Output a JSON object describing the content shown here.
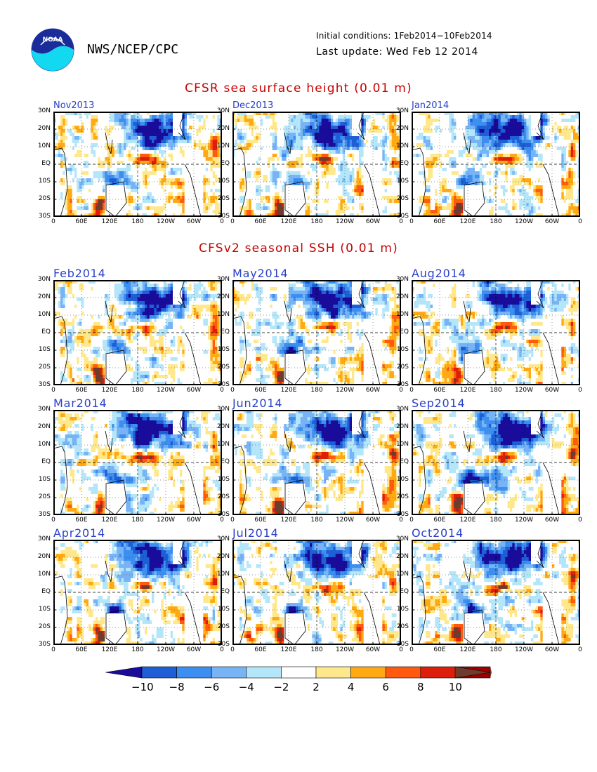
{
  "header": {
    "org": "NWS/NCEP/CPC",
    "logo_text": "NOAA",
    "initial_conditions": "Initial conditions: 1Feb2014−10Feb2014",
    "last_update": "Last update: Wed Feb 12 2014"
  },
  "sections": {
    "observed_title": "CFSR sea surface height (0.01 m)",
    "forecast_title": "CFSv2 seasonal SSH (0.01 m)"
  },
  "panels": {
    "observed": [
      "Nov2013",
      "Dec2013",
      "Jan2014"
    ],
    "forecast": [
      "Feb2014",
      "May2014",
      "Aug2014",
      "Mar2014",
      "Jun2014",
      "Sep2014",
      "Apr2014",
      "Jul2014",
      "Oct2014"
    ]
  },
  "axes": {
    "lat_labels": [
      "30N",
      "20N",
      "10N",
      "EQ",
      "10S",
      "20S",
      "30S"
    ],
    "lon_labels": [
      "0",
      "60E",
      "120E",
      "180",
      "120W",
      "60W",
      "0"
    ]
  },
  "colorbar": {
    "labels": [
      "−10",
      "−8",
      "−6",
      "−4",
      "−2",
      "2",
      "4",
      "6",
      "8",
      "10"
    ],
    "colors": [
      "#1a0c9a",
      "#1f5fd6",
      "#3c8ff0",
      "#78b4f5",
      "#b4e6fa",
      "#ffffff",
      "#ffe88c",
      "#ffaa14",
      "#ff5a0f",
      "#dc1e0a",
      "#a00000",
      "#6e3c2d"
    ]
  }
}
